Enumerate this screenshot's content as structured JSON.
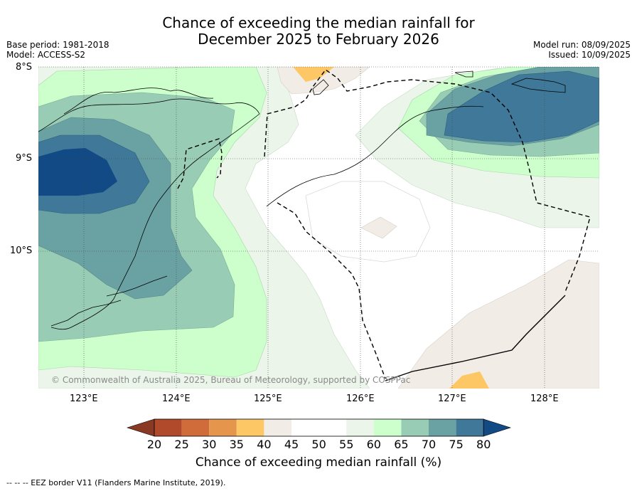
{
  "title": {
    "line1": "Chance of exceeding the median rainfall for",
    "line2": "December 2025 to February 2026"
  },
  "meta": {
    "base_period": "Base period: 1981-2018",
    "model": "Model: ACCESS-S2",
    "model_run": "Model run: 08/09/2025",
    "issued": "Issued: 10/09/2025"
  },
  "axes": {
    "lat_labels": [
      "8°S",
      "9°S",
      "10°S"
    ],
    "lon_labels": [
      "123°E",
      "124°E",
      "125°E",
      "126°E",
      "127°E",
      "128°E"
    ]
  },
  "copyright": "© Commonwealth of Australia 2025, Bureau of Meteorology, supported by COSPPac",
  "colorbar": {
    "title": "Chance of exceeding median rainfall (%)",
    "ticks": [
      "20",
      "25",
      "30",
      "35",
      "40",
      "45",
      "50",
      "55",
      "60",
      "65",
      "70",
      "75",
      "80"
    ],
    "colors": {
      "lt20": "#8a3a24",
      "20-25": "#b04a2a",
      "25-30": "#d06b3a",
      "30-35": "#e5954c",
      "35-40": "#fdc765",
      "40-45": "#f1ece5",
      "45-50": "#ffffff",
      "50-55": "#ffffff",
      "55-60": "#ebf5ea",
      "60-65": "#ccffcc",
      "65-70": "#99ccb5",
      "70-75": "#6aa2a4",
      "75-80": "#3f7898",
      "gt80": "#124a85"
    }
  },
  "footer": "--  --  -- EEZ border V11 (Flanders Marine Institute, 2019)."
}
